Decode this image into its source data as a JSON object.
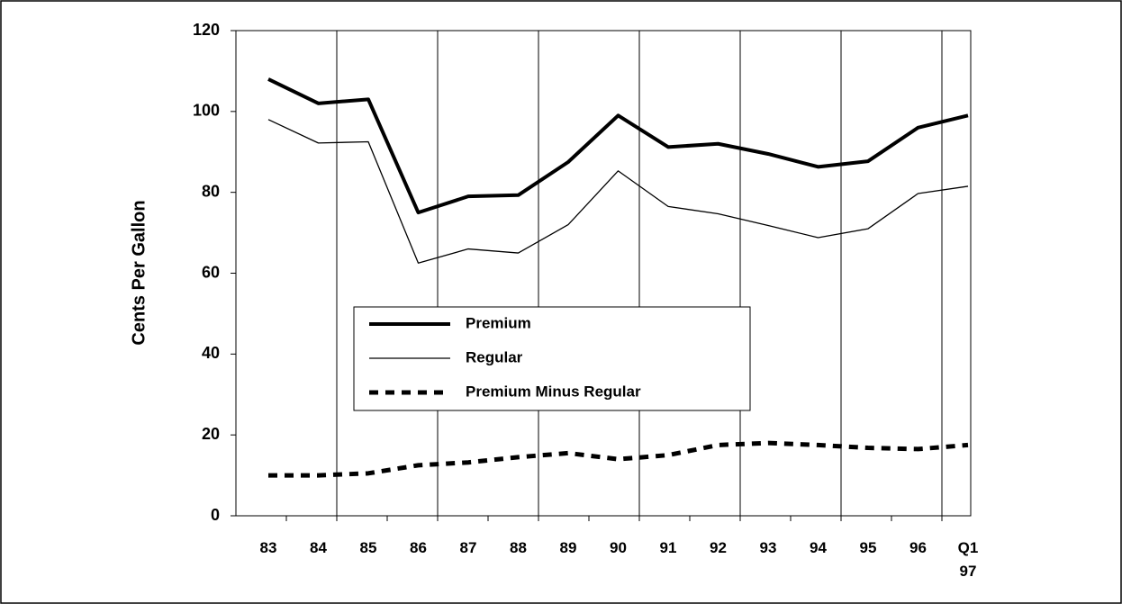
{
  "chart_data": {
    "type": "line",
    "y_label": "Cents Per Gallon",
    "categories": [
      "83",
      "84",
      "85",
      "86",
      "87",
      "88",
      "89",
      "90",
      "91",
      "92",
      "93",
      "94",
      "95",
      "96",
      "Q1 97"
    ],
    "ylim": [
      0,
      120
    ],
    "yticks": [
      0,
      20,
      40,
      60,
      80,
      100,
      120
    ],
    "series": [
      {
        "name": "Premium",
        "color": "#000000",
        "style": "thick",
        "values": [
          108,
          102,
          103,
          75,
          79,
          79.3,
          87.5,
          99,
          91.2,
          92,
          89.5,
          86.3,
          87.7,
          96,
          99
        ]
      },
      {
        "name": "Regular",
        "color": "#000000",
        "style": "thin",
        "values": [
          98,
          92.2,
          92.5,
          62.5,
          66,
          65,
          72,
          85.3,
          76.5,
          74.7,
          71.8,
          68.8,
          71,
          79.7,
          81.5
        ]
      },
      {
        "name": "Premium Minus Regular",
        "color": "#000000",
        "style": "dashed",
        "values": [
          10,
          10,
          10.5,
          12.5,
          13.2,
          14.5,
          15.5,
          14,
          15,
          17.5,
          18,
          17.5,
          16.8,
          16.5,
          17.5
        ]
      }
    ]
  }
}
